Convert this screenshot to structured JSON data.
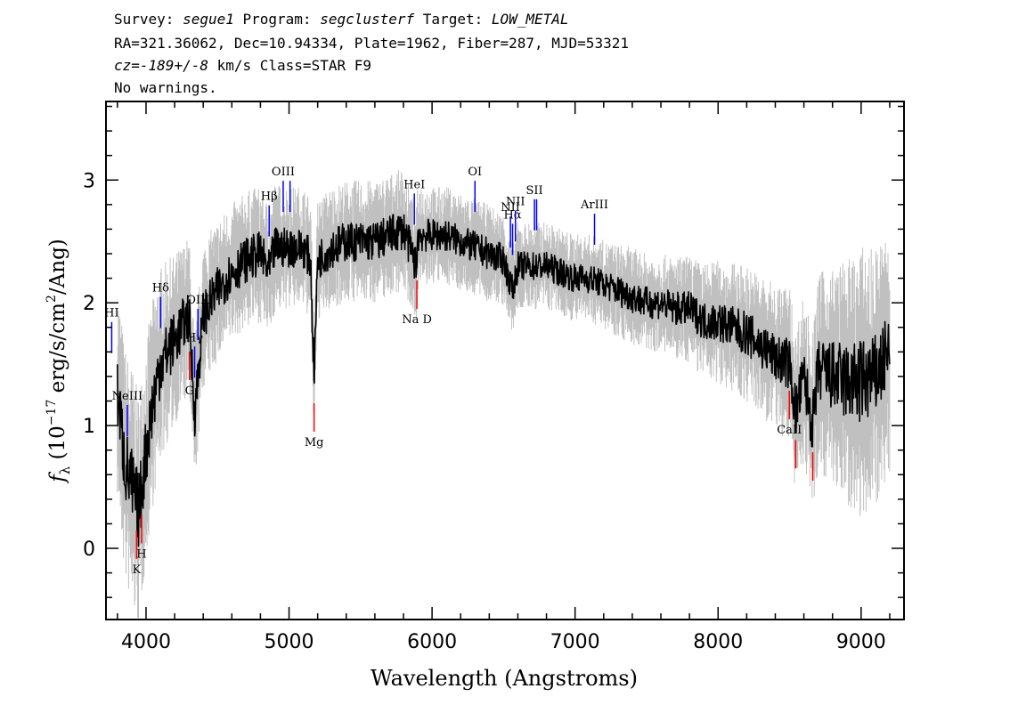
{
  "header": {
    "survey_label": "Survey: ",
    "survey": "segue1",
    "program_label": " Program: ",
    "program": "segclusterf",
    "target_label": " Target: ",
    "target": "LOW_METAL",
    "line2": "RA=321.36062, Dec=10.94334, Plate=1962, Fiber=287, MJD=53321",
    "cz_prefix": "cz=",
    "cz_value": "-189+/-8",
    "cz_suffix": " km/s Class=STAR F9",
    "line4": "No warnings."
  },
  "chart_data": {
    "type": "line",
    "xlabel": "Wavelength (Angstroms)",
    "ylabel": "fλ (10^-17 erg/s/cm^2/Ang)",
    "xlim": [
      3720,
      9300
    ],
    "ylim": [
      -0.58,
      3.64
    ],
    "xticks": [
      4000,
      5000,
      6000,
      7000,
      8000,
      9000
    ],
    "yticks": [
      0,
      1,
      2,
      3
    ],
    "colors": {
      "flux": "#000000",
      "error": "#c0c0c0",
      "emission": "#0000ff",
      "absorption": "#ff0000"
    },
    "series": [
      {
        "role": "flux",
        "x": [
          3800,
          3850,
          3900,
          3950,
          4000,
          4050,
          4100,
          4150,
          4200,
          4250,
          4300,
          4340,
          4400,
          4450,
          4500,
          4600,
          4700,
          4800,
          4861,
          4900,
          5000,
          5100,
          5150,
          5175,
          5200,
          5300,
          5400,
          5500,
          5600,
          5700,
          5800,
          5890,
          5900,
          6000,
          6100,
          6200,
          6300,
          6400,
          6500,
          6563,
          6600,
          6700,
          6800,
          6900,
          7000,
          7100,
          7200,
          7300,
          7400,
          7500,
          7600,
          7700,
          7800,
          7900,
          8000,
          8100,
          8200,
          8300,
          8400,
          8500,
          8542,
          8600,
          8662,
          8700,
          8800,
          8900,
          9000,
          9100,
          9200
        ],
        "y": [
          1.3,
          0.7,
          0.5,
          0.3,
          0.8,
          1.2,
          1.5,
          1.6,
          1.7,
          1.8,
          1.9,
          1.1,
          1.9,
          2.0,
          2.1,
          2.25,
          2.35,
          2.4,
          2.25,
          2.45,
          2.45,
          2.45,
          2.35,
          1.4,
          2.35,
          2.45,
          2.5,
          2.5,
          2.5,
          2.55,
          2.6,
          2.3,
          2.55,
          2.55,
          2.55,
          2.5,
          2.45,
          2.4,
          2.35,
          2.1,
          2.3,
          2.3,
          2.3,
          2.25,
          2.2,
          2.2,
          2.15,
          2.1,
          2.05,
          2.0,
          2.0,
          1.95,
          1.95,
          1.85,
          1.85,
          1.8,
          1.75,
          1.65,
          1.55,
          1.5,
          1.1,
          1.4,
          1.0,
          1.45,
          1.4,
          1.35,
          1.35,
          1.4,
          1.6
        ]
      },
      {
        "role": "error",
        "x": [
          3800,
          3900,
          4000,
          4200,
          4400,
          4600,
          4800,
          5000,
          5200,
          5400,
          5600,
          5800,
          6000,
          6200,
          6400,
          6600,
          6800,
          7000,
          7200,
          7400,
          7600,
          7800,
          8000,
          8200,
          8400,
          8600,
          8800,
          9000,
          9200
        ],
        "y": [
          0.45,
          0.5,
          0.45,
          0.35,
          0.3,
          0.28,
          0.28,
          0.25,
          0.25,
          0.25,
          0.25,
          0.25,
          0.2,
          0.2,
          0.2,
          0.18,
          0.18,
          0.18,
          0.18,
          0.2,
          0.2,
          0.22,
          0.25,
          0.28,
          0.3,
          0.35,
          0.45,
          0.55,
          0.5
        ]
      }
    ],
    "emission_lines": [
      {
        "label": "HI",
        "wave": 3760
      },
      {
        "label": "NeIII",
        "wave": 3869
      },
      {
        "label": "Hδ",
        "wave": 4102
      },
      {
        "label": "Hγ",
        "wave": 4340
      },
      {
        "label": "OIII",
        "wave": 4363
      },
      {
        "label": "Hβ",
        "wave": 4861
      },
      {
        "label": "OIII",
        "wave": 4959
      },
      {
        "label": "",
        "wave": 5007
      },
      {
        "label": "HeI",
        "wave": 5876
      },
      {
        "label": "OI",
        "wave": 6300
      },
      {
        "label": "NII",
        "wave": 6548
      },
      {
        "label": "Hα",
        "wave": 6563
      },
      {
        "label": "NII",
        "wave": 6583
      },
      {
        "label": "SII",
        "wave": 6716
      },
      {
        "label": "",
        "wave": 6731
      },
      {
        "label": "ArIII",
        "wave": 7136
      }
    ],
    "absorption_lines": [
      {
        "label": "K",
        "wave": 3934
      },
      {
        "label": "H",
        "wave": 3969
      },
      {
        "label": "G",
        "wave": 4304
      },
      {
        "label": "Mg",
        "wave": 5175
      },
      {
        "label": "Na D",
        "wave": 5894
      },
      {
        "label": "CaII",
        "wave": 8498
      },
      {
        "label": "",
        "wave": 8542
      },
      {
        "label": "",
        "wave": 8662
      }
    ]
  }
}
